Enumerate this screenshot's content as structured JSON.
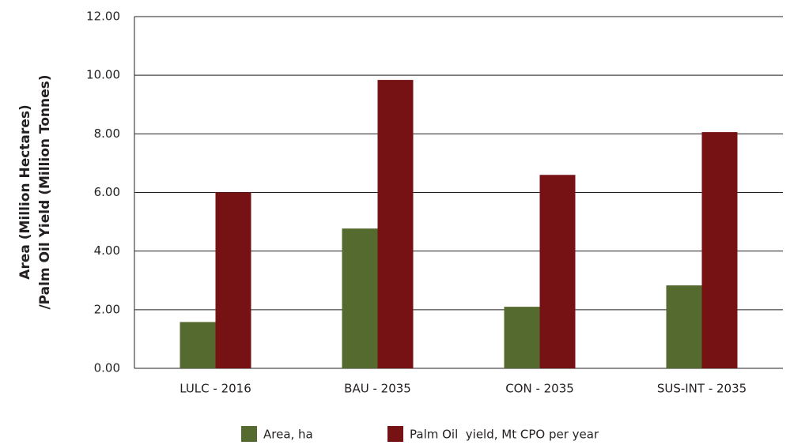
{
  "chart_data": {
    "type": "bar",
    "y_label": [
      "Area (Million Hectares)",
      "/Palm Oil Yield (Million Tonnes)"
    ],
    "categories": [
      "LULC - 2016",
      "BAU - 2035",
      "CON - 2035",
      "SUS-INT - 2035"
    ],
    "series": [
      {
        "name": "Area, ha",
        "color": "#546a2e",
        "values": [
          1.58,
          4.77,
          2.1,
          2.83
        ]
      },
      {
        "name": "Palm Oil  yield, Mt CPO per year",
        "color": "#761214",
        "values": [
          6.0,
          9.84,
          6.6,
          8.06
        ]
      }
    ],
    "ylim": [
      0,
      12
    ],
    "yticks": [
      {
        "value": 0,
        "label": "0.00"
      },
      {
        "value": 2,
        "label": "2.00"
      },
      {
        "value": 4,
        "label": "4.00"
      },
      {
        "value": 6,
        "label": "6.00"
      },
      {
        "value": 8,
        "label": "8.00"
      },
      {
        "value": 10,
        "label": "10.00"
      },
      {
        "value": 12,
        "label": "12.00"
      }
    ],
    "grid": true,
    "legend": "bottom"
  }
}
